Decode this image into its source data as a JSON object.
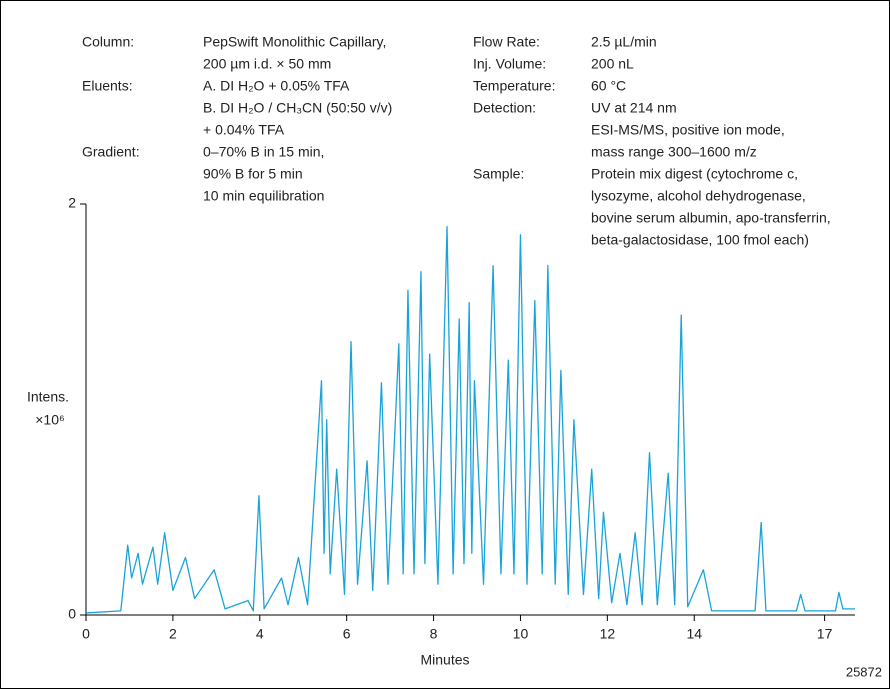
{
  "chart_data": {
    "type": "line",
    "ylabel": "Intens.",
    "ylabel_unit": "×10⁶",
    "xlabel": "Minutes",
    "figure_number": "25872",
    "annotations": [
      {
        "label": "Column:",
        "lines": [
          "PepSwift  Monolithic Capillary,",
          "200 µm i.d. × 50 mm"
        ]
      },
      {
        "label": "Eluents:",
        "lines": [
          "A. DI H₂O + 0.05% TFA",
          "B. DI H₂O / CH₃CN (50:50 v/v)",
          "+ 0.04% TFA"
        ]
      },
      {
        "label": "Gradient:",
        "lines": [
          "0–70% B in 15 min,",
          "90% B for 5 min",
          "10 min equilibration"
        ]
      },
      {
        "label": "Flow Rate:",
        "lines": [
          "2.5 µL/min"
        ]
      },
      {
        "label": "Inj. Volume:",
        "lines": [
          "200 nL"
        ]
      },
      {
        "label": "Temperature:",
        "lines": [
          "60 °C"
        ]
      },
      {
        "label": "Detection:",
        "lines": [
          "UV at 214 nm",
          "ESI-MS/MS, positive ion mode,",
          "mass range 300–1600 m/z"
        ]
      },
      {
        "label": "Sample:",
        "lines": [
          "Protein mix digest (cytochrome c,",
          "lysozyme, alcohol dehydrogenase,",
          "bovine serum albumin, apo-transferrin,",
          "beta-galactosidase, 100 fmol each)"
        ]
      }
    ],
    "color": "#1aa3d9",
    "xlim": [
      0,
      17.7
    ],
    "xticks": [
      0,
      2,
      4,
      6,
      8,
      10,
      12,
      14,
      17
    ],
    "ylim": [
      0,
      2
    ],
    "yticks": [
      0,
      2
    ],
    "x": [
      0,
      0.8,
      0.96,
      1.05,
      1.2,
      1.3,
      1.54,
      1.65,
      1.81,
      2.0,
      2.29,
      2.5,
      2.95,
      3.2,
      3.73,
      3.85,
      3.98,
      4.1,
      4.5,
      4.65,
      4.89,
      5.1,
      5.42,
      5.48,
      5.54,
      5.62,
      5.77,
      5.95,
      6.1,
      6.25,
      6.47,
      6.6,
      6.8,
      6.95,
      7.2,
      7.3,
      7.41,
      7.55,
      7.71,
      7.8,
      7.91,
      8.1,
      8.31,
      8.45,
      8.59,
      8.7,
      8.82,
      8.88,
      8.94,
      9.15,
      9.37,
      9.55,
      9.72,
      9.85,
      10.0,
      10.15,
      10.33,
      10.5,
      10.63,
      10.8,
      10.93,
      11.1,
      11.23,
      11.45,
      11.64,
      11.8,
      11.91,
      12.1,
      12.29,
      12.45,
      12.64,
      12.8,
      12.97,
      13.15,
      13.4,
      13.55,
      13.7,
      13.85,
      14.21,
      14.4,
      15.4,
      15.54,
      15.65,
      16.35,
      16.45,
      16.55,
      17.25,
      17.33,
      17.42,
      17.7
    ],
    "values": [
      0.01,
      0.02,
      0.34,
      0.18,
      0.3,
      0.15,
      0.33,
      0.15,
      0.4,
      0.12,
      0.28,
      0.08,
      0.22,
      0.03,
      0.07,
      0.02,
      0.58,
      0.03,
      0.18,
      0.05,
      0.28,
      0.05,
      1.14,
      0.3,
      0.95,
      0.2,
      0.71,
      0.1,
      1.33,
      0.15,
      0.75,
      0.12,
      1.13,
      0.15,
      1.32,
      0.2,
      1.58,
      0.2,
      1.67,
      0.25,
      1.27,
      0.15,
      1.89,
      0.2,
      1.44,
      0.25,
      1.52,
      0.3,
      1.14,
      0.15,
      1.7,
      0.2,
      1.24,
      0.2,
      1.85,
      0.15,
      1.53,
      0.2,
      1.7,
      0.15,
      1.19,
      0.1,
      0.95,
      0.1,
      0.71,
      0.08,
      0.5,
      0.06,
      0.3,
      0.05,
      0.4,
      0.05,
      0.79,
      0.05,
      0.69,
      0.05,
      1.46,
      0.04,
      0.22,
      0.02,
      0.02,
      0.45,
      0.02,
      0.02,
      0.1,
      0.02,
      0.02,
      0.11,
      0.03,
      0.03
    ]
  }
}
